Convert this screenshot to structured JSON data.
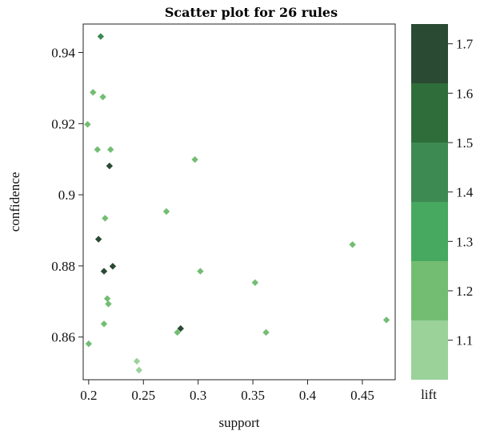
{
  "chart_data": {
    "type": "scatter",
    "title": "Scatter plot for 26 rules",
    "xlabel": "support",
    "ylabel": "confidence",
    "xlim": [
      0.195,
      0.48
    ],
    "ylim": [
      0.848,
      0.948
    ],
    "x_ticks": [
      0.2,
      0.25,
      0.3,
      0.35,
      0.4,
      0.45
    ],
    "x_tick_labels": [
      "0.2",
      "0.25",
      "0.3",
      "0.35",
      "0.4",
      "0.45"
    ],
    "y_ticks": [
      0.86,
      0.88,
      0.9,
      0.92,
      0.94
    ],
    "y_tick_labels": [
      "0.86",
      "0.88",
      "0.9",
      "0.92",
      "0.94"
    ],
    "grid": false,
    "marker": "diamond",
    "color_legend": {
      "label": "lift",
      "position": "right",
      "range": [
        1.02,
        1.74
      ],
      "ticks": [
        1.1,
        1.2,
        1.3,
        1.4,
        1.5,
        1.6,
        1.7
      ],
      "tick_labels": [
        "1.1",
        "1.2",
        "1.3",
        "1.4",
        "1.5",
        "1.6",
        "1.7"
      ],
      "bands": [
        {
          "from": 1.02,
          "to": 1.14,
          "color": "#9ad29a"
        },
        {
          "from": 1.14,
          "to": 1.26,
          "color": "#73bd73"
        },
        {
          "from": 1.26,
          "to": 1.38,
          "color": "#47a85f"
        },
        {
          "from": 1.38,
          "to": 1.5,
          "color": "#3e8a53"
        },
        {
          "from": 1.5,
          "to": 1.62,
          "color": "#2f6e3a"
        },
        {
          "from": 1.62,
          "to": 1.74,
          "color": "#2a4a33"
        }
      ]
    },
    "points": [
      {
        "support": 0.211,
        "confidence": 0.9445,
        "lift": 1.45
      },
      {
        "support": 0.204,
        "confidence": 0.9288,
        "lift": 1.2
      },
      {
        "support": 0.213,
        "confidence": 0.9275,
        "lift": 1.2
      },
      {
        "support": 0.199,
        "confidence": 0.9198,
        "lift": 1.2
      },
      {
        "support": 0.208,
        "confidence": 0.9127,
        "lift": 1.2
      },
      {
        "support": 0.22,
        "confidence": 0.9127,
        "lift": 1.2
      },
      {
        "support": 0.219,
        "confidence": 0.9081,
        "lift": 1.7
      },
      {
        "support": 0.297,
        "confidence": 0.9099,
        "lift": 1.2
      },
      {
        "support": 0.271,
        "confidence": 0.8953,
        "lift": 1.2
      },
      {
        "support": 0.215,
        "confidence": 0.8934,
        "lift": 1.2
      },
      {
        "support": 0.209,
        "confidence": 0.8875,
        "lift": 1.7
      },
      {
        "support": 0.441,
        "confidence": 0.886,
        "lift": 1.2
      },
      {
        "support": 0.222,
        "confidence": 0.8799,
        "lift": 1.7
      },
      {
        "support": 0.214,
        "confidence": 0.8785,
        "lift": 1.7
      },
      {
        "support": 0.302,
        "confidence": 0.8785,
        "lift": 1.2
      },
      {
        "support": 0.352,
        "confidence": 0.8753,
        "lift": 1.2
      },
      {
        "support": 0.217,
        "confidence": 0.8708,
        "lift": 1.2
      },
      {
        "support": 0.218,
        "confidence": 0.8693,
        "lift": 1.2
      },
      {
        "support": 0.472,
        "confidence": 0.8648,
        "lift": 1.2
      },
      {
        "support": 0.214,
        "confidence": 0.8637,
        "lift": 1.2
      },
      {
        "support": 0.284,
        "confidence": 0.8624,
        "lift": 1.7
      },
      {
        "support": 0.281,
        "confidence": 0.8613,
        "lift": 1.2
      },
      {
        "support": 0.362,
        "confidence": 0.8613,
        "lift": 1.2
      },
      {
        "support": 0.2,
        "confidence": 0.8581,
        "lift": 1.2
      },
      {
        "support": 0.244,
        "confidence": 0.8532,
        "lift": 1.1
      },
      {
        "support": 0.246,
        "confidence": 0.8507,
        "lift": 1.1
      }
    ]
  }
}
